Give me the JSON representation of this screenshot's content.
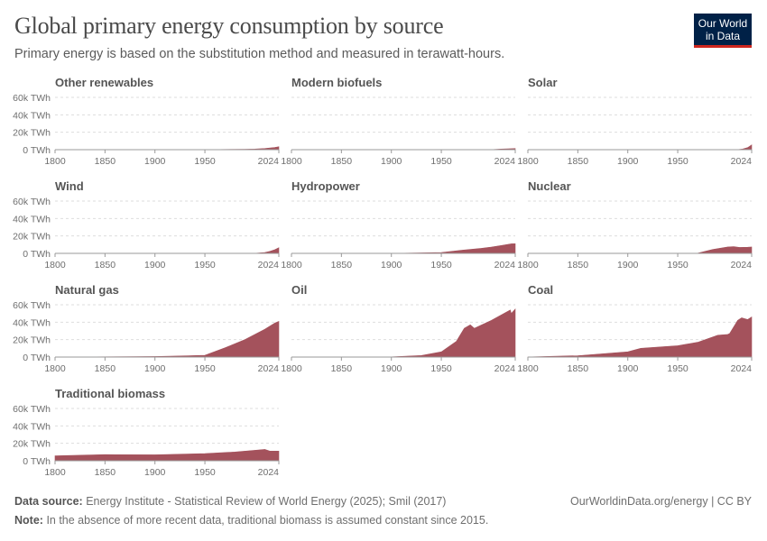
{
  "header": {
    "title": "Global primary energy consumption by source",
    "subtitle": "Primary energy is based on the substitution method and measured in terawatt-hours.",
    "logo_text": "Our World in Data"
  },
  "footer": {
    "source_label": "Data source:",
    "source_text": "Energy Institute - Statistical Review of World Energy (2025); Smil (2017)",
    "credit": "OurWorldinData.org/energy | CC BY",
    "note_label": "Note:",
    "note_text": "In the absence of more recent data, traditional biomass is assumed constant since 2015."
  },
  "chart_data": {
    "type": "area",
    "layout": "small-multiples",
    "unit": "TWh",
    "xlim": [
      1800,
      2024
    ],
    "ylim": [
      0,
      60000
    ],
    "x_ticks": [
      "1800",
      "1850",
      "1900",
      "1950",
      "2024"
    ],
    "y_ticks": [
      "0 TWh",
      "20k TWh",
      "40k TWh",
      "60k TWh"
    ],
    "grid": true,
    "color": "#a4525c",
    "panels": [
      {
        "name": "Other renewables",
        "x": [
          1800,
          1965,
          1990,
          2000,
          2010,
          2020,
          2024
        ],
        "y": [
          0,
          200,
          450,
          700,
          1300,
          2600,
          3400
        ]
      },
      {
        "name": "Modern biofuels",
        "x": [
          1800,
          1990,
          2000,
          2010,
          2020,
          2024
        ],
        "y": [
          0,
          100,
          150,
          700,
          1100,
          1300
        ]
      },
      {
        "name": "Solar",
        "x": [
          1800,
          2010,
          2015,
          2020,
          2024
        ],
        "y": [
          0,
          90,
          700,
          2400,
          5500
        ]
      },
      {
        "name": "Wind",
        "x": [
          1800,
          2000,
          2010,
          2015,
          2020,
          2024
        ],
        "y": [
          0,
          80,
          1000,
          2300,
          4200,
          6500
        ]
      },
      {
        "name": "Hydropower",
        "x": [
          1800,
          1900,
          1950,
          1970,
          1990,
          2000,
          2010,
          2020,
          2024
        ],
        "y": [
          0,
          50,
          900,
          3500,
          5800,
          7200,
          9000,
          11000,
          11100
        ]
      },
      {
        "name": "Nuclear",
        "x": [
          1800,
          1960,
          1970,
          1985,
          2000,
          2006,
          2012,
          2020,
          2024
        ],
        "y": [
          0,
          0,
          230,
          4400,
          7300,
          7700,
          6800,
          7000,
          7300
        ]
      },
      {
        "name": "Natural gas",
        "x": [
          1800,
          1900,
          1930,
          1950,
          1970,
          1990,
          2010,
          2020,
          2024
        ],
        "y": [
          0,
          650,
          1300,
          2100,
          10600,
          20000,
          32000,
          39000,
          41000
        ]
      },
      {
        "name": "Oil",
        "x": [
          1800,
          1900,
          1930,
          1950,
          1965,
          1973,
          1979,
          1983,
          2000,
          2019,
          2020,
          2024
        ],
        "y": [
          0,
          180,
          1800,
          6000,
          18000,
          33000,
          37000,
          33000,
          42000,
          54000,
          50000,
          55000
        ]
      },
      {
        "name": "Coal",
        "x": [
          1800,
          1850,
          1900,
          1913,
          1950,
          1970,
          1990,
          2000,
          2002,
          2010,
          2014,
          2020,
          2024
        ],
        "y": [
          100,
          1600,
          6000,
          10000,
          13000,
          17000,
          25000,
          26000,
          27000,
          42000,
          45000,
          43000,
          46000
        ]
      },
      {
        "name": "Traditional biomass",
        "x": [
          1800,
          1850,
          1900,
          1950,
          1980,
          2000,
          2010,
          2015,
          2024
        ],
        "y": [
          5600,
          7000,
          6800,
          8200,
          10000,
          12000,
          13000,
          11100,
          11100
        ]
      }
    ]
  }
}
